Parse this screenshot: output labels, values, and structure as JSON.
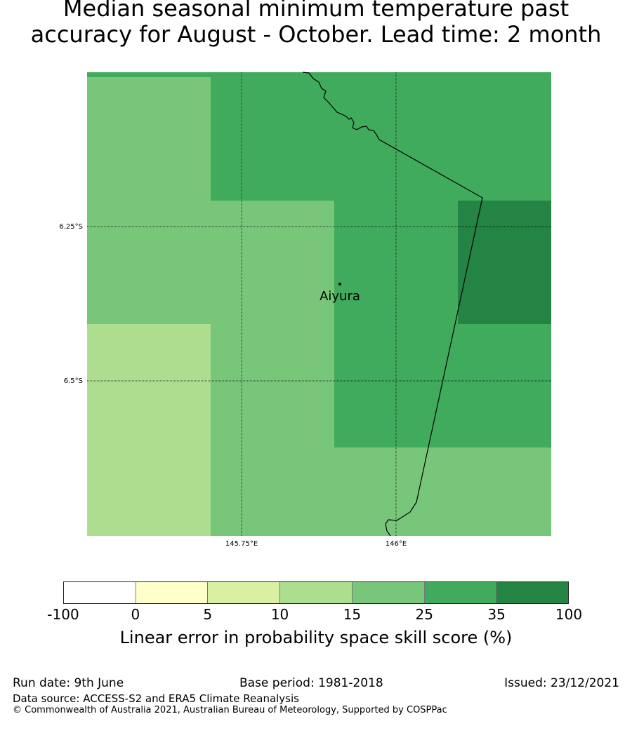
{
  "title": {
    "line1": "Median seasonal minimum temperature past",
    "line2": "accuracy for August - October. Lead time: 2 month"
  },
  "map": {
    "place_name": "Aiyura",
    "lat_labels": [
      "6.25°S",
      "6.5°S"
    ],
    "lon_labels": [
      "145.75°E",
      "146°E"
    ],
    "grid": [
      [
        "25-35",
        "25-35",
        "25-35",
        "25-35",
        "25-35",
        "25-35"
      ],
      [
        "15-25",
        "25-35",
        "25-35",
        "25-35",
        "25-35",
        "25-35"
      ],
      [
        "15-25",
        "15-25",
        "15-25",
        "25-35",
        "25-35",
        "35-100"
      ],
      [
        "10-15",
        "15-25",
        "15-25",
        "25-35",
        "25-35",
        "25-35"
      ],
      [
        "10-15",
        "15-25",
        "15-25",
        "15-25",
        "15-25",
        "15-25"
      ]
    ],
    "bin_colors": {
      "-100-0": "#ffffff",
      "0-5": "#ffffcc",
      "5-10": "#d9f0a3",
      "10-15": "#addd8e",
      "15-25": "#78c679",
      "25-35": "#41ab5d",
      "35-100": "#238443"
    }
  },
  "colorbar": {
    "colors": [
      "#ffffff",
      "#ffffcc",
      "#d9f0a3",
      "#addd8e",
      "#78c679",
      "#41ab5d",
      "#238443"
    ],
    "ticks": [
      "-100",
      "0",
      "5",
      "10",
      "15",
      "25",
      "35",
      "100"
    ],
    "label": "Linear error in probability space skill score (%)"
  },
  "footer": {
    "run_date": "Run date: 9th June",
    "base_period": "Base period: 1981-2018",
    "issued": "Issued: 23/12/2021",
    "data_source": "Data source: ACCESS-S2 and ERA5 Climate Reanalysis",
    "copyright": "© Commonwealth of Australia 2021, Australian Bureau of Meteorology, Supported by COSPPac"
  }
}
